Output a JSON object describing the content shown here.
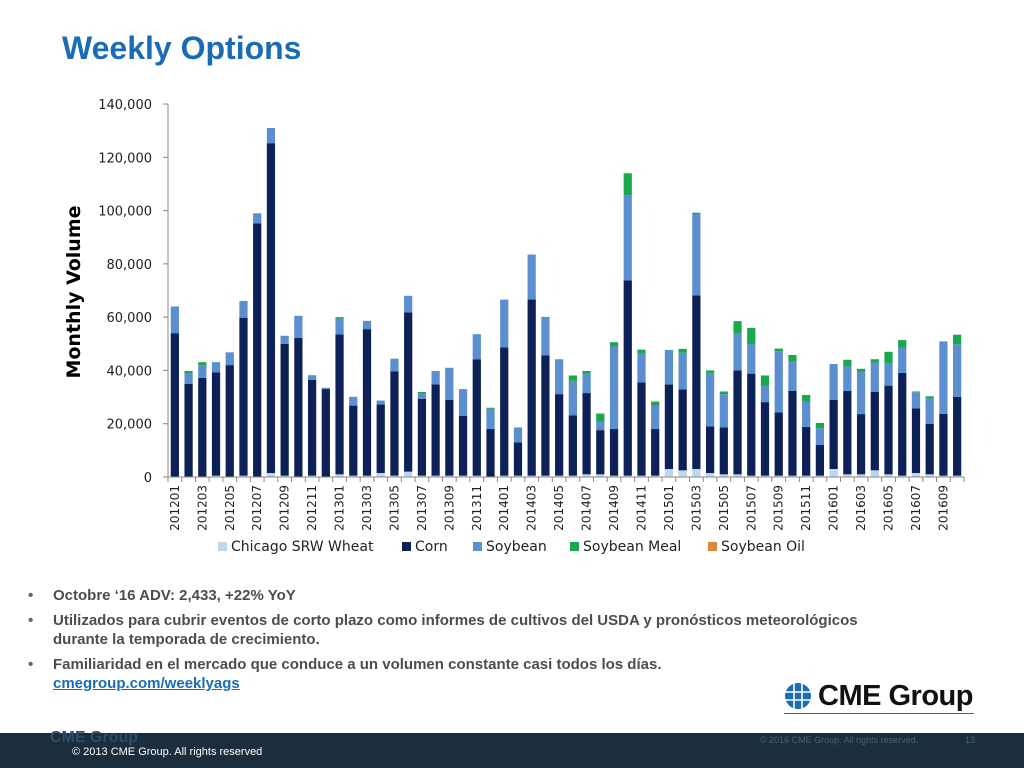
{
  "slide": {
    "title": "Weekly Options",
    "bullets": [
      {
        "text": "Octobre ‘16 ADV: 2,433, +22% YoY"
      },
      {
        "text": "Utilizados para cubrir eventos de corto plazo como informes de cultivos del USDA y pronósticos meteorológicos durante la temporada de crecimiento."
      },
      {
        "text": "Familiaridad en el mercado que conduce a un volumen constante casi todos los días.",
        "link": "cmegroup.com/weeklyags"
      }
    ],
    "logo_text": "CME Group",
    "footer": {
      "copyright": "© 2013 CME Group. All rights reserved",
      "faint_copyright": "© 2016 CME Group. All rights reserved.",
      "page_number": "13",
      "ghost_logo": "CME Group"
    }
  },
  "chart_data": {
    "type": "bar",
    "stacked": true,
    "title": "",
    "ylabel": "Monthly Volume",
    "xlabel": "",
    "ylim": [
      0,
      140000
    ],
    "yticks": [
      "0",
      "20,000",
      "40,000",
      "60,000",
      "80,000",
      "100,000",
      "120,000",
      "140,000"
    ],
    "legend_position": "bottom",
    "categories": [
      "201201",
      "201202",
      "201203",
      "201204",
      "201205",
      "201206",
      "201207",
      "201208",
      "201209",
      "201210",
      "201211",
      "201212",
      "201301",
      "201302",
      "201303",
      "201304",
      "201305",
      "201306",
      "201307",
      "201308",
      "201309",
      "201310",
      "201311",
      "201312",
      "201401",
      "201402",
      "201403",
      "201404",
      "201405",
      "201406",
      "201407",
      "201408",
      "201409",
      "201410",
      "201411",
      "201412",
      "201501",
      "201502",
      "201503",
      "201504",
      "201505",
      "201506",
      "201507",
      "201508",
      "201509",
      "201510",
      "201511",
      "201512",
      "201601",
      "201602",
      "201603",
      "201604",
      "201605",
      "201606",
      "201607",
      "201608",
      "201609",
      "201610"
    ],
    "series": [
      {
        "name": "Chicago SRW Wheat",
        "color": "#bcd7ee",
        "values": [
          200,
          200,
          200,
          500,
          200,
          500,
          200,
          1500,
          500,
          200,
          500,
          200,
          1000,
          500,
          500,
          1500,
          500,
          2000,
          500,
          500,
          500,
          500,
          500,
          200,
          500,
          500,
          500,
          500,
          500,
          500,
          1000,
          1000,
          500,
          500,
          500,
          500,
          3000,
          2500,
          3000,
          1500,
          1000,
          1000,
          500,
          500,
          500,
          500,
          500,
          500,
          3000,
          1000,
          1000,
          2500,
          1000,
          500,
          1500,
          1000,
          500,
          500
        ]
      },
      {
        "name": "Corn",
        "color": "#0d2157",
        "values": [
          53800,
          34800,
          37000,
          38800,
          41800,
          59300,
          95000,
          123800,
          49500,
          52000,
          36000,
          32800,
          52500,
          26300,
          55000,
          25700,
          39200,
          59800,
          28800,
          34300,
          28500,
          22500,
          43600,
          17800,
          48100,
          12500,
          66100,
          45200,
          30600,
          22600,
          30500,
          16600,
          17500,
          73300,
          35000,
          17600,
          31700,
          30400,
          65200,
          17500,
          17600,
          39000,
          38300,
          27600,
          23700,
          31800,
          18300,
          11500,
          25900,
          31300,
          22600,
          29500,
          33300,
          38600,
          24300,
          19000,
          23200,
          29600
        ]
      },
      {
        "name": "Soybean",
        "color": "#5b8fd0",
        "values": [
          10000,
          3800,
          4700,
          3800,
          4800,
          6300,
          3800,
          5700,
          3000,
          8300,
          1700,
          500,
          6000,
          3300,
          2800,
          1500,
          4700,
          6200,
          2000,
          5000,
          12000,
          10000,
          9500,
          7700,
          18000,
          5600,
          16900,
          14400,
          13100,
          13000,
          7300,
          3200,
          31000,
          32000,
          10800,
          8700,
          13000,
          13700,
          30500,
          20000,
          12500,
          14000,
          11000,
          6000,
          23000,
          11000,
          9500,
          6300,
          13500,
          9200,
          16000,
          11000,
          8200,
          9500,
          6000,
          9500,
          27200,
          19700
        ]
      },
      {
        "name": "Soybean Meal",
        "color": "#1aa84c",
        "values": [
          0,
          1000,
          1200,
          0,
          0,
          0,
          0,
          0,
          0,
          0,
          0,
          0,
          500,
          0,
          300,
          0,
          0,
          0,
          600,
          0,
          0,
          0,
          0,
          300,
          0,
          0,
          0,
          0,
          0,
          2000,
          1000,
          3000,
          1600,
          8200,
          1500,
          1500,
          0,
          1500,
          500,
          1000,
          1000,
          4500,
          6200,
          4000,
          1000,
          2500,
          2500,
          2000,
          0,
          2500,
          1000,
          1200,
          4500,
          2800,
          300,
          800,
          0,
          3600
        ]
      },
      {
        "name": "Soybean Oil",
        "color": "#d98937",
        "values": [
          0,
          0,
          0,
          0,
          0,
          0,
          0,
          0,
          0,
          0,
          0,
          0,
          0,
          0,
          0,
          0,
          0,
          0,
          0,
          0,
          0,
          0,
          0,
          0,
          0,
          0,
          0,
          0,
          0,
          0,
          0,
          0,
          0,
          0,
          0,
          0,
          0,
          0,
          0,
          0,
          0,
          0,
          0,
          0,
          0,
          0,
          0,
          0,
          0,
          0,
          0,
          0,
          0,
          0,
          0,
          0,
          0,
          0
        ]
      }
    ]
  }
}
